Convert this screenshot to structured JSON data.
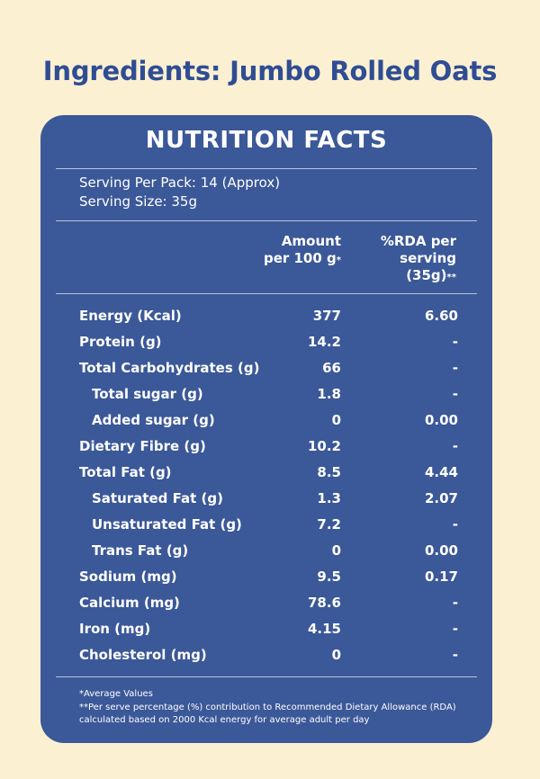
{
  "page_title": "Ingredients: Jumbo Rolled Oats",
  "panel": {
    "title": "NUTRITION FACTS",
    "serving_per_pack": "Serving Per Pack: 14 (Approx)",
    "serving_size": "Serving Size: 35g",
    "col_amount_line1": "Amount",
    "col_amount_line2": "per 100 g",
    "col_amount_mark": "*",
    "col_rda_line1": "%RDA per",
    "col_rda_line2": "serving",
    "col_rda_line3": "(35g)",
    "col_rda_mark": "**",
    "rows": [
      {
        "name": "Energy (Kcal)",
        "amount": "377",
        "rda": "6.60"
      },
      {
        "name": "Protein (g)",
        "amount": "14.2",
        "rda": "-"
      },
      {
        "name": "Total Carbohydrates (g)",
        "amount": "66",
        "rda": "-"
      },
      {
        "name": "Total sugar (g)",
        "amount": "1.8",
        "rda": "-"
      },
      {
        "name": "Added sugar (g)",
        "amount": "0",
        "rda": "0.00"
      },
      {
        "name": "Dietary Fibre (g)",
        "amount": "10.2",
        "rda": "-"
      },
      {
        "name": "Total Fat (g)",
        "amount": "8.5",
        "rda": "4.44"
      },
      {
        "name": "Saturated Fat (g)",
        "amount": "1.3",
        "rda": "2.07"
      },
      {
        "name": "Unsaturated Fat (g)",
        "amount": "7.2",
        "rda": "-"
      },
      {
        "name": "Trans Fat (g)",
        "amount": "0",
        "rda": "0.00"
      },
      {
        "name": "Sodium (mg)",
        "amount": "9.5",
        "rda": "0.17"
      },
      {
        "name": "Calcium (mg)",
        "amount": "78.6",
        "rda": "-"
      },
      {
        "name": "Iron (mg)",
        "amount": "4.15",
        "rda": "-"
      },
      {
        "name": "Cholesterol (mg)",
        "amount": "0",
        "rda": "-"
      }
    ],
    "footnote_1": "*Average Values",
    "footnote_2": "**Per serve percentage (%) contribution to Recommended Dietary Allowance (RDA) calculated based on 2000 Kcal energy for average adult per day"
  },
  "colors": {
    "background": "#fbf0d2",
    "panel": "#3b5898",
    "title": "#2f4d93"
  }
}
